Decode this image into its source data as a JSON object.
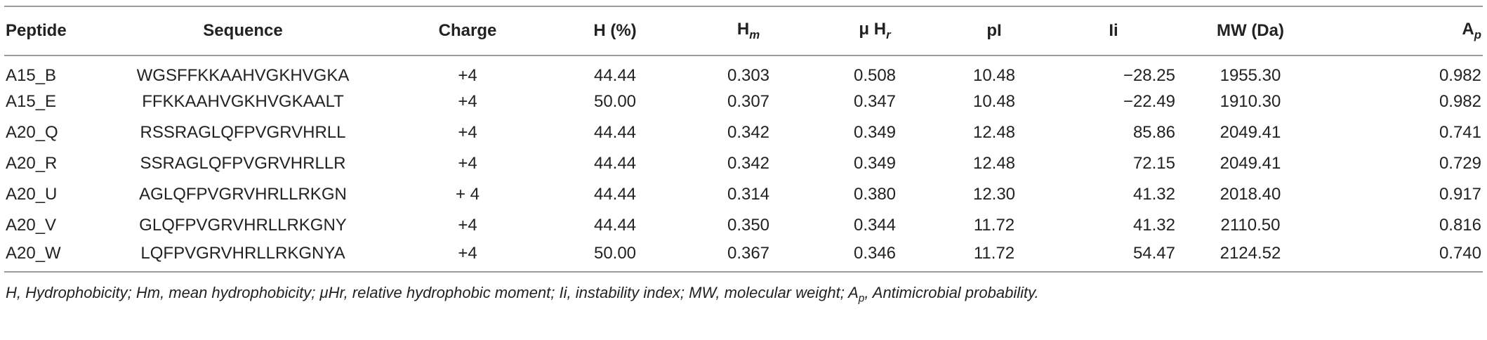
{
  "headers": {
    "peptide": "Peptide",
    "sequence": "Sequence",
    "charge": "Charge",
    "h": "H (%)",
    "hm_base": "H",
    "hm_sub": "m",
    "muhr_base": "μ H",
    "muhr_sub": "r",
    "pi": "pI",
    "ii": "Ii",
    "mw": "MW (Da)",
    "ap_base": "A",
    "ap_sub": "p"
  },
  "rows": [
    {
      "peptide": "A15_B",
      "sequence": "WGSFFKKAAHVGKHVGKA",
      "charge": "+4",
      "h": "44.44",
      "hm": "0.303",
      "muhr": "0.508",
      "pi": "10.48",
      "ii": "−28.25",
      "mw": "1955.30",
      "ap": "0.982"
    },
    {
      "peptide": "A15_E",
      "sequence": "FFKKAAHVGKHVGKAALT",
      "charge": "+4",
      "h": "50.00",
      "hm": "0.307",
      "muhr": "0.347",
      "pi": "10.48",
      "ii": "−22.49",
      "mw": "1910.30",
      "ap": "0.982"
    },
    {
      "peptide": "A20_Q",
      "sequence": "RSSRAGLQFPVGRVHRLL",
      "charge": "+4",
      "h": "44.44",
      "hm": "0.342",
      "muhr": "0.349",
      "pi": "12.48",
      "ii": "85.86",
      "mw": "2049.41",
      "ap": "0.741"
    },
    {
      "peptide": "A20_R",
      "sequence": "SSRAGLQFPVGRVHRLLR",
      "charge": "+4",
      "h": "44.44",
      "hm": "0.342",
      "muhr": "0.349",
      "pi": "12.48",
      "ii": "72.15",
      "mw": "2049.41",
      "ap": "0.729"
    },
    {
      "peptide": "A20_U",
      "sequence": "AGLQFPVGRVHRLLRKGN",
      "charge": "+ 4",
      "h": "44.44",
      "hm": "0.314",
      "muhr": "0.380",
      "pi": "12.30",
      "ii": "41.32",
      "mw": "2018.40",
      "ap": "0.917"
    },
    {
      "peptide": "A20_V",
      "sequence": "GLQFPVGRVHRLLRKGNY",
      "charge": "+4",
      "h": "44.44",
      "hm": "0.350",
      "muhr": "0.344",
      "pi": "11.72",
      "ii": "41.32",
      "mw": "2110.50",
      "ap": "0.816"
    },
    {
      "peptide": "A20_W",
      "sequence": "LQFPVGRVHRLLRKGNYA",
      "charge": "+4",
      "h": "50.00",
      "hm": "0.367",
      "muhr": "0.346",
      "pi": "11.72",
      "ii": "54.47",
      "mw": "2124.52",
      "ap": "0.740"
    }
  ],
  "footnote": {
    "text_before": "H, Hydrophobicity; Hm, mean hydrophobicity; μHr, relative hydrophobic moment; Ii, instability index; MW, molecular weight; A",
    "sub": "p",
    "text_after": ", Antimicrobial probability."
  }
}
